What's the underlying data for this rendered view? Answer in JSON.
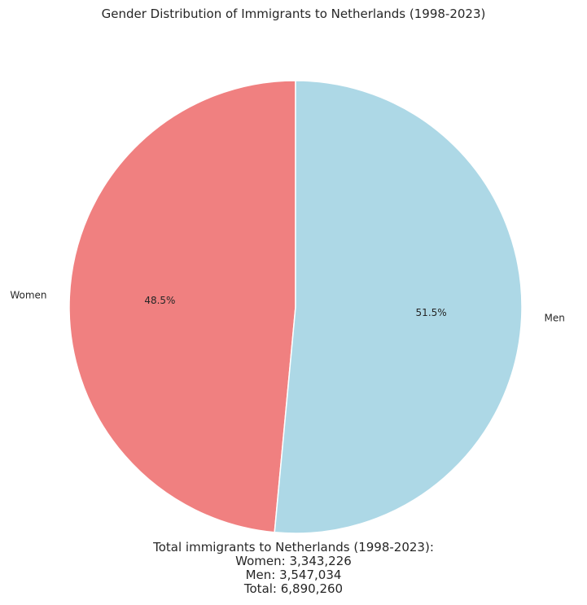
{
  "chart_data": {
    "type": "pie",
    "title": "Gender Distribution of Immigrants to Netherlands (1998-2023)",
    "labels": [
      "Women",
      "Men"
    ],
    "values": [
      3343226,
      3547034
    ],
    "percent_labels": [
      "48.5%",
      "51.5%"
    ],
    "colors": [
      "#f08080",
      "#add8e6"
    ],
    "start_angle_deg": 90,
    "direction": "counterclockwise",
    "legend": "none"
  },
  "summary": {
    "heading": "Total immigrants to Netherlands (1998-2023):",
    "women_line": "Women: 3,343,226",
    "men_line": "Men: 3,547,034",
    "total_line": "Total: 6,890,260"
  }
}
